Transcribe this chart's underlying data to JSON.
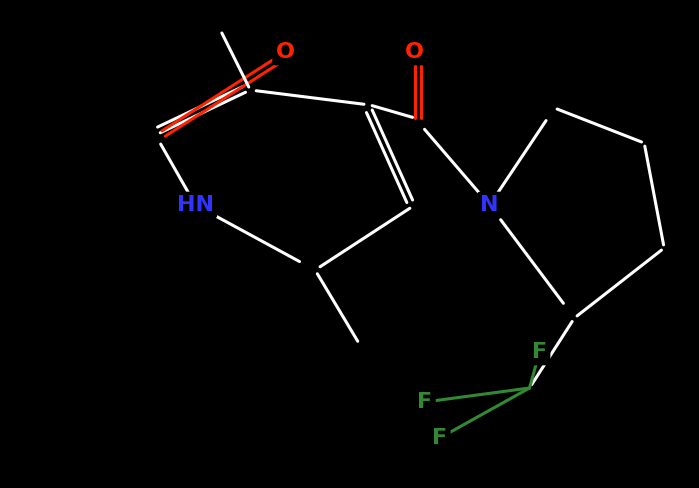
{
  "bg_color": "#000000",
  "bond_color": "#ffffff",
  "bond_width": 2.2,
  "atom_colors": {
    "O": "#ff2200",
    "N": "#3333ff",
    "F": "#338833"
  },
  "figsize": [
    6.99,
    4.88
  ],
  "dpi": 100,
  "xlim": [
    0,
    10
  ],
  "ylim": [
    0,
    7
  ]
}
